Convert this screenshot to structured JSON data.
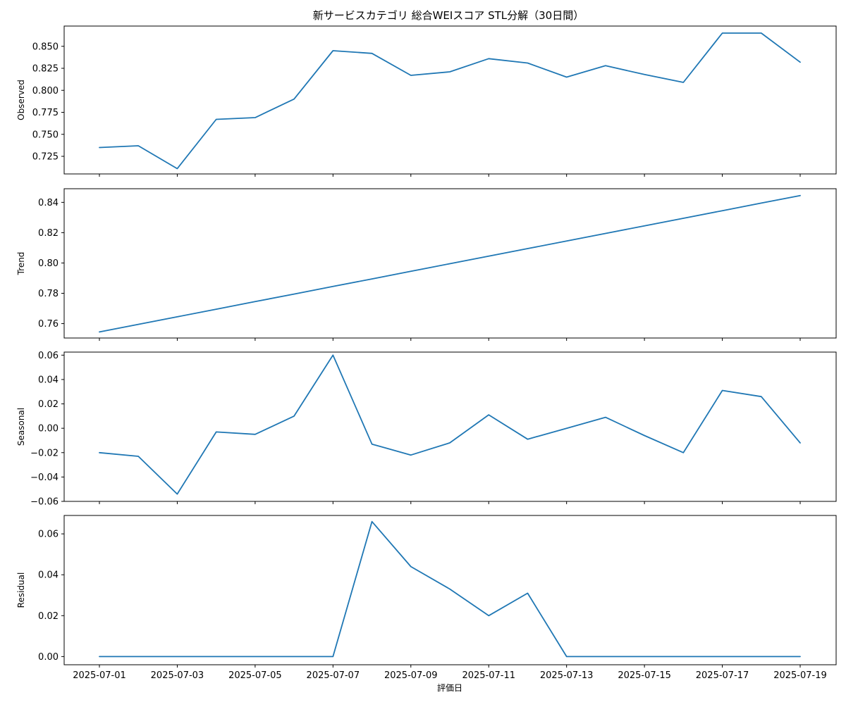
{
  "chart_data": {
    "type": "line",
    "title": "新サービスカテゴリ 総合WEIスコア STL分解（30日間）",
    "xlabel": "評価日",
    "line_color": "#1f77b4",
    "x": [
      "2025-07-01",
      "2025-07-02",
      "2025-07-03",
      "2025-07-04",
      "2025-07-05",
      "2025-07-06",
      "2025-07-07",
      "2025-07-08",
      "2025-07-09",
      "2025-07-10",
      "2025-07-11",
      "2025-07-12",
      "2025-07-13",
      "2025-07-14",
      "2025-07-15",
      "2025-07-16",
      "2025-07-17",
      "2025-07-18",
      "2025-07-19"
    ],
    "x_tick_labels": [
      "2025-07-01",
      "2025-07-03",
      "2025-07-05",
      "2025-07-07",
      "2025-07-09",
      "2025-07-11",
      "2025-07-13",
      "2025-07-15",
      "2025-07-17",
      "2025-07-19"
    ],
    "panels": [
      {
        "ylabel": "Observed",
        "ylim": [
          0.705,
          0.873
        ],
        "yticks": [
          "0.725",
          "0.750",
          "0.775",
          "0.800",
          "0.825",
          "0.850"
        ],
        "values": [
          0.735,
          0.737,
          0.711,
          0.767,
          0.769,
          0.79,
          0.845,
          0.842,
          0.817,
          0.821,
          0.836,
          0.831,
          0.815,
          0.828,
          0.818,
          0.809,
          0.865,
          0.865,
          0.832
        ]
      },
      {
        "ylabel": "Trend",
        "ylim": [
          0.7505,
          0.849
        ],
        "yticks": [
          "0.76",
          "0.78",
          "0.80",
          "0.82",
          "0.84"
        ],
        "values": [
          0.7545,
          0.7595,
          0.7645,
          0.7695,
          0.7745,
          0.7795,
          0.7845,
          0.7895,
          0.7945,
          0.7995,
          0.8045,
          0.8095,
          0.8145,
          0.8195,
          0.8245,
          0.8295,
          0.8345,
          0.8395,
          0.8445
        ]
      },
      {
        "ylabel": "Seasonal",
        "ylim": [
          -0.06,
          0.0625
        ],
        "yticks": [
          "−0.06",
          "−0.04",
          "−0.02",
          "0.00",
          "0.02",
          "0.04",
          "0.06"
        ],
        "values": [
          -0.02,
          -0.023,
          -0.054,
          -0.003,
          -0.005,
          0.01,
          0.06,
          -0.013,
          -0.022,
          -0.012,
          0.011,
          -0.009,
          0.0,
          0.009,
          -0.006,
          -0.02,
          0.031,
          0.026,
          -0.012
        ]
      },
      {
        "ylabel": "Residual",
        "ylim": [
          -0.004,
          0.069
        ],
        "yticks": [
          "0.00",
          "0.02",
          "0.04",
          "0.06"
        ],
        "values": [
          0.0,
          0.0,
          0.0,
          0.0,
          0.0,
          0.0,
          0.0,
          0.066,
          0.044,
          0.033,
          0.02,
          0.031,
          0.0,
          0.0,
          0.0,
          0.0,
          0.0,
          0.0,
          0.0
        ]
      }
    ]
  }
}
